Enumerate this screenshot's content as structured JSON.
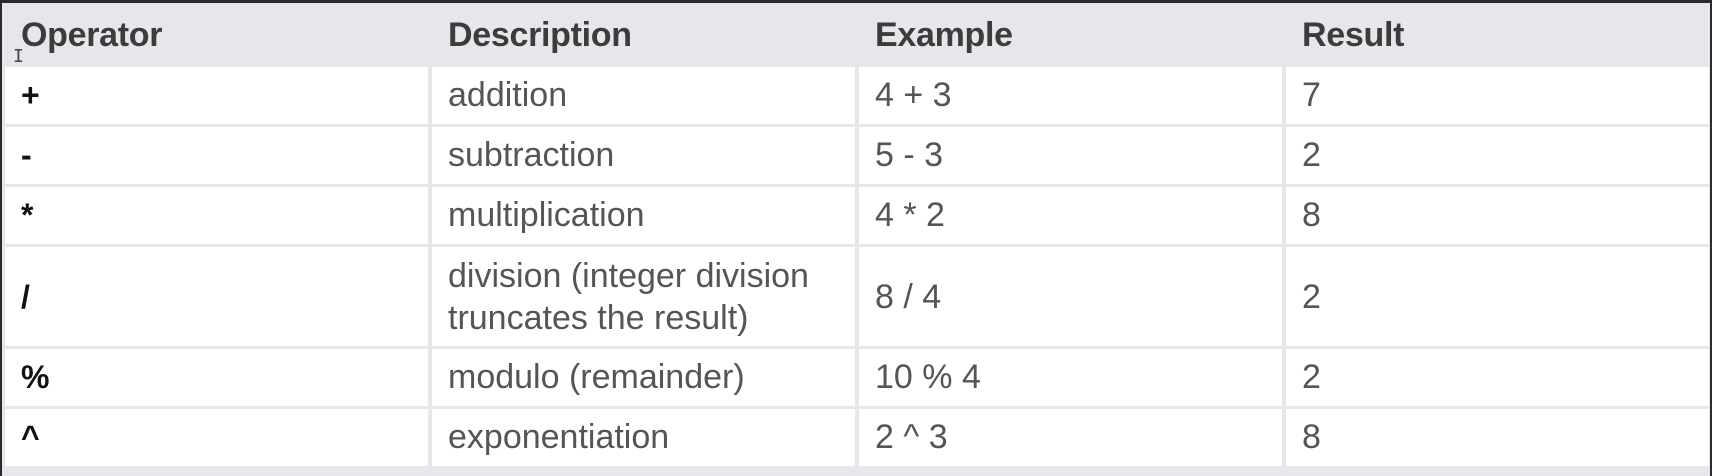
{
  "table": {
    "headers": [
      "Operator",
      "Description",
      "Example",
      "Result"
    ],
    "rows": [
      {
        "operator": "+",
        "description": "addition",
        "example": "4 + 3",
        "result": "7"
      },
      {
        "operator": "-",
        "description": "subtraction",
        "example": "5 - 3",
        "result": "2"
      },
      {
        "operator": "*",
        "description": "multiplication",
        "example": "4 * 2",
        "result": "8"
      },
      {
        "operator": "/",
        "description": "division (integer division truncates the result)",
        "example": "8 / 4",
        "result": "2"
      },
      {
        "operator": "%",
        "description": "modulo (remainder)",
        "example": "10 % 4",
        "result": "2"
      },
      {
        "operator": "^",
        "description": "exponentiation",
        "example": "2 ^ 3",
        "result": "8"
      }
    ]
  }
}
